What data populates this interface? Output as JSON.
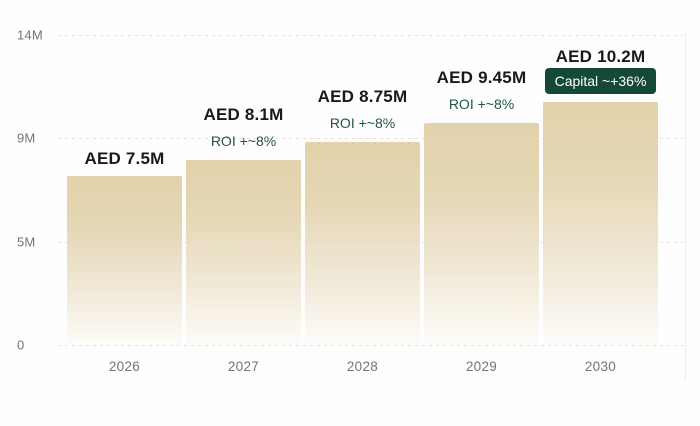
{
  "chart_data": {
    "type": "bar",
    "title": "",
    "xlabel": "",
    "ylabel": "",
    "unit": "AED (millions)",
    "categories": [
      "2026",
      "2027",
      "2028",
      "2029",
      "2030"
    ],
    "values": [
      7.5,
      8.1,
      8.75,
      9.45,
      10.2
    ],
    "ylim": [
      0,
      14
    ],
    "y_ticks": [
      {
        "label": "14M",
        "value": 14
      },
      {
        "label": "9M",
        "value": 9
      },
      {
        "label": "5M",
        "value": 5
      },
      {
        "label": "0",
        "value": 0
      }
    ],
    "grid": "horizontal dotted",
    "legend_position": "none",
    "bars": [
      {
        "year": "2026",
        "value": 7.5,
        "value_label": "AED 7.5M",
        "sub_label": "",
        "sub_type": "none"
      },
      {
        "year": "2027",
        "value": 8.1,
        "value_label": "AED 8.1M",
        "sub_label": "ROI +~8%",
        "sub_type": "roi"
      },
      {
        "year": "2028",
        "value": 8.75,
        "value_label": "AED 8.75M",
        "sub_label": "ROI +~8%",
        "sub_type": "roi"
      },
      {
        "year": "2029",
        "value": 9.45,
        "value_label": "AED 9.45M",
        "sub_label": "ROI +~8%",
        "sub_type": "roi"
      },
      {
        "year": "2030",
        "value": 10.2,
        "value_label": "AED 10.2M",
        "sub_label": "Capital ~+36%",
        "sub_type": "capital-badge"
      }
    ]
  },
  "colors": {
    "bar_gradient_top": "#e2d2ab",
    "bar_gradient_bottom": "#fdfcfa",
    "value_text": "#17191e",
    "roi_text": "#1f5449",
    "badge_bg": "#16483a",
    "badge_text": "#ffffff",
    "axis_text": "#73737c",
    "gridline": "#ecd8d1",
    "background": "#fefefe"
  }
}
